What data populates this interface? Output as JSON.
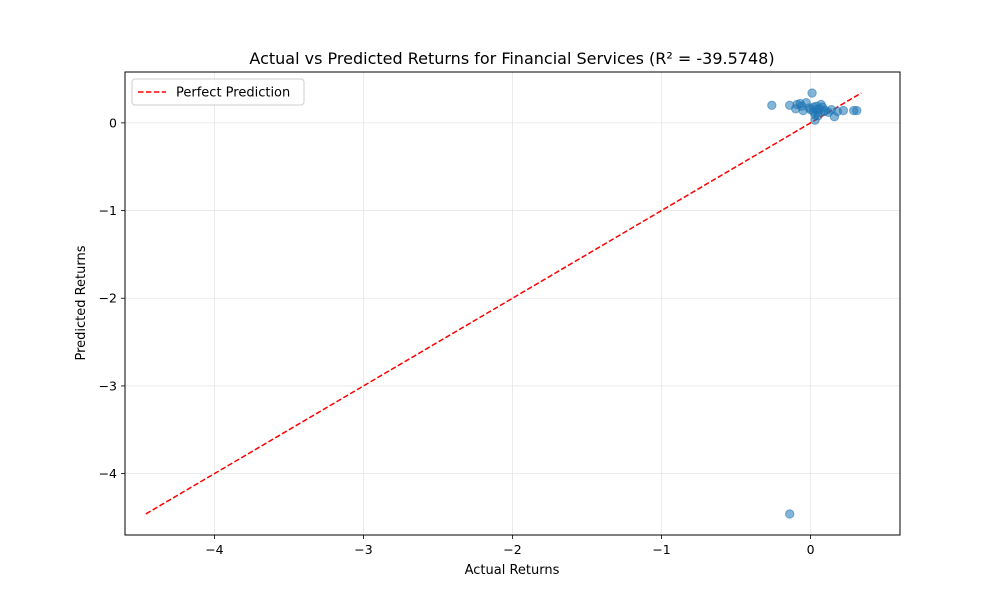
{
  "chart_data": {
    "type": "scatter",
    "title": "Actual vs Predicted Returns for Financial Services (R² = -39.5748)",
    "xlabel": "Actual Returns",
    "ylabel": "Predicted Returns",
    "xlim": [
      -4.6,
      0.6
    ],
    "ylim": [
      -4.7,
      0.58
    ],
    "xticks": [
      -4,
      -3,
      -2,
      -1,
      0
    ],
    "yticks": [
      -4,
      -3,
      -2,
      -1,
      0
    ],
    "xtick_labels": [
      "−4",
      "−3",
      "−2",
      "−1",
      "0"
    ],
    "ytick_labels": [
      "−4",
      "−3",
      "−2",
      "−1",
      "0"
    ],
    "grid": true,
    "legend_position": "upper-left",
    "colors": {
      "points": "#1f77b4",
      "reference_line": "#ff0000",
      "grid": "#e6e6e6",
      "axes": "#000000"
    },
    "series": [
      {
        "kind": "scatter",
        "points": [
          [
            -0.26,
            0.2
          ],
          [
            -0.14,
            0.2
          ],
          [
            -0.1,
            0.16
          ],
          [
            -0.09,
            0.21
          ],
          [
            -0.07,
            0.22
          ],
          [
            -0.06,
            0.19
          ],
          [
            -0.05,
            0.14
          ],
          [
            -0.03,
            0.23
          ],
          [
            -0.01,
            0.17
          ],
          [
            0.01,
            0.34
          ],
          [
            0.02,
            0.18
          ],
          [
            0.02,
            0.13
          ],
          [
            0.03,
            0.09
          ],
          [
            0.03,
            0.03
          ],
          [
            0.04,
            0.15
          ],
          [
            0.04,
            0.19
          ],
          [
            0.05,
            0.12
          ],
          [
            0.06,
            0.16
          ],
          [
            0.07,
            0.21
          ],
          [
            0.08,
            0.18
          ],
          [
            0.09,
            0.13
          ],
          [
            0.1,
            0.14
          ],
          [
            0.12,
            0.12
          ],
          [
            0.14,
            0.15
          ],
          [
            0.16,
            0.07
          ],
          [
            0.18,
            0.13
          ],
          [
            0.22,
            0.14
          ],
          [
            0.29,
            0.14
          ],
          [
            0.31,
            0.14
          ],
          [
            0.05,
            0.08
          ],
          [
            0.0,
            0.15
          ],
          [
            -0.14,
            -4.46
          ]
        ]
      },
      {
        "kind": "line",
        "name": "Perfect Prediction",
        "style": "dashed",
        "points": [
          [
            -4.46,
            -4.46
          ],
          [
            0.34,
            0.34
          ]
        ]
      }
    ]
  }
}
